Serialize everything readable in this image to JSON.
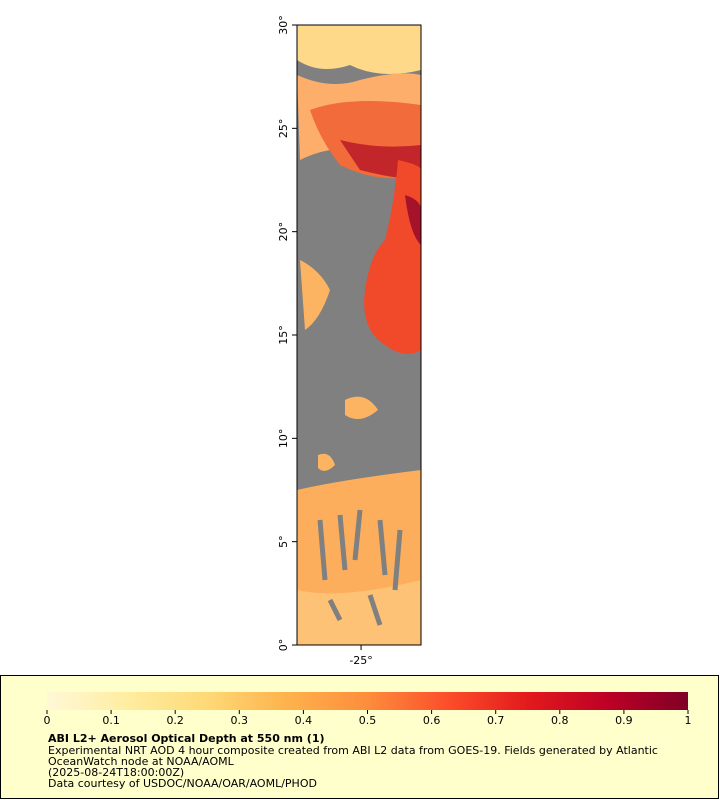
{
  "map": {
    "xlim": [
      -28.1,
      -22.1
    ],
    "ylim": [
      0,
      30
    ],
    "xticks": [
      {
        "value": -25,
        "label": "-25°"
      }
    ],
    "yticks": [
      {
        "value": 0,
        "label": "0°"
      },
      {
        "value": 5,
        "label": "5°"
      },
      {
        "value": 10,
        "label": "10°"
      },
      {
        "value": 15,
        "label": "15°"
      },
      {
        "value": 20,
        "label": "20°"
      },
      {
        "value": 25,
        "label": "25°"
      },
      {
        "value": 30,
        "label": "30°"
      }
    ],
    "missing_color": "#808080"
  },
  "colorbar": {
    "range": [
      0,
      1
    ],
    "ticks": [
      0,
      0.1,
      0.2,
      0.3,
      0.4,
      0.5,
      0.6,
      0.7,
      0.8,
      0.9,
      1
    ],
    "colors": [
      "#fff8d8",
      "#ffeda0",
      "#fed976",
      "#feb24c",
      "#fd8d3c",
      "#fc4e2a",
      "#e31a1c",
      "#bd0026",
      "#800026"
    ]
  },
  "legend": {
    "title": "ABI L2+ Aerosol Optical Depth at 550 nm (1)",
    "lines": [
      "Experimental NRT AOD 4 hour composite created from ABI L2 data from GOES-19. Fields generated by Atlantic",
      "OceanWatch node at NOAA/AOML",
      "(2025-08-24T18:00:00Z)",
      "Data courtesy of USDOC/NOAA/OAR/AOML/PHOD"
    ]
  }
}
